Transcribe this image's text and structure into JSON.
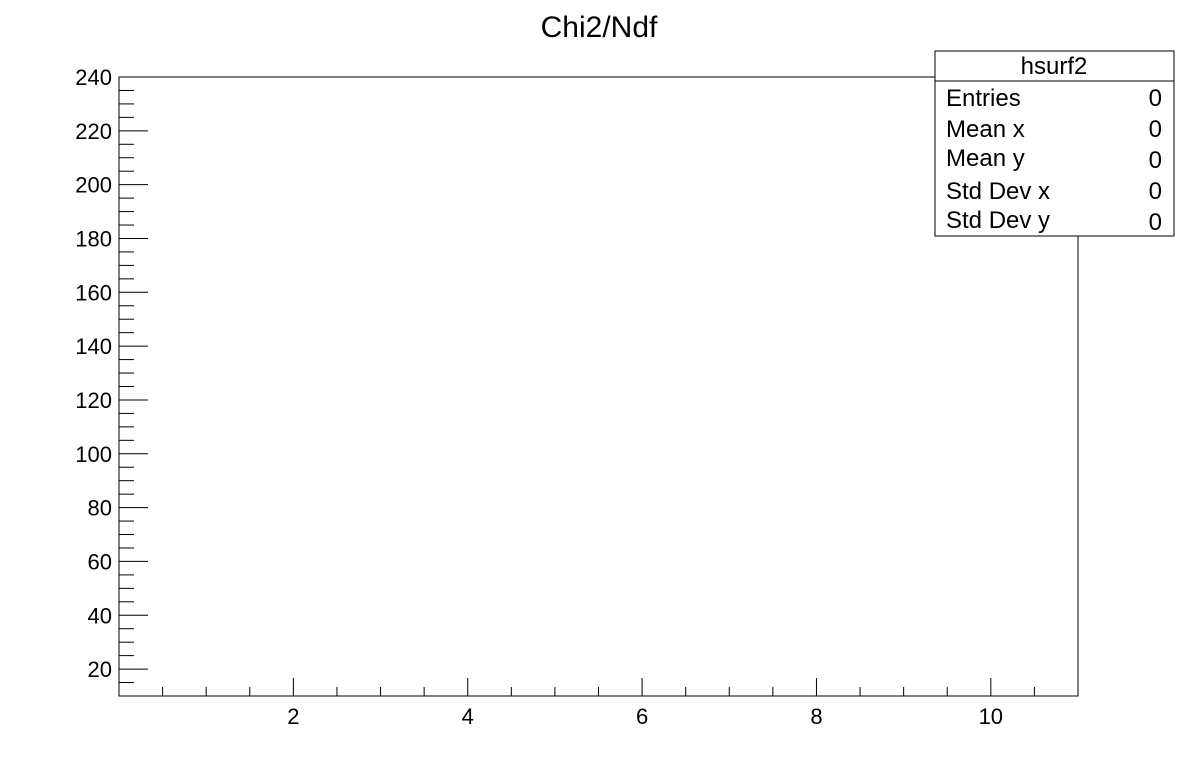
{
  "chart_data": {
    "type": "scatter",
    "title": "Chi2/Ndf",
    "xlabel": "",
    "ylabel": "",
    "xlim": [
      0.0,
      11.0
    ],
    "ylim": [
      10,
      240
    ],
    "x_ticks": [
      2,
      4,
      6,
      8,
      10
    ],
    "y_ticks": [
      20,
      40,
      60,
      80,
      100,
      120,
      140,
      160,
      180,
      200,
      220,
      240
    ],
    "x": [],
    "y": [],
    "grid": false,
    "legend": "none"
  },
  "stats": {
    "name": "hsurf2",
    "rows": [
      {
        "label": "Entries",
        "value": "0"
      },
      {
        "label": "Mean x",
        "value": "0"
      },
      {
        "label": "Mean y",
        "value": "0"
      },
      {
        "label": "Std Dev x",
        "value": "0"
      },
      {
        "label": "Std Dev y",
        "value": "0"
      }
    ]
  }
}
